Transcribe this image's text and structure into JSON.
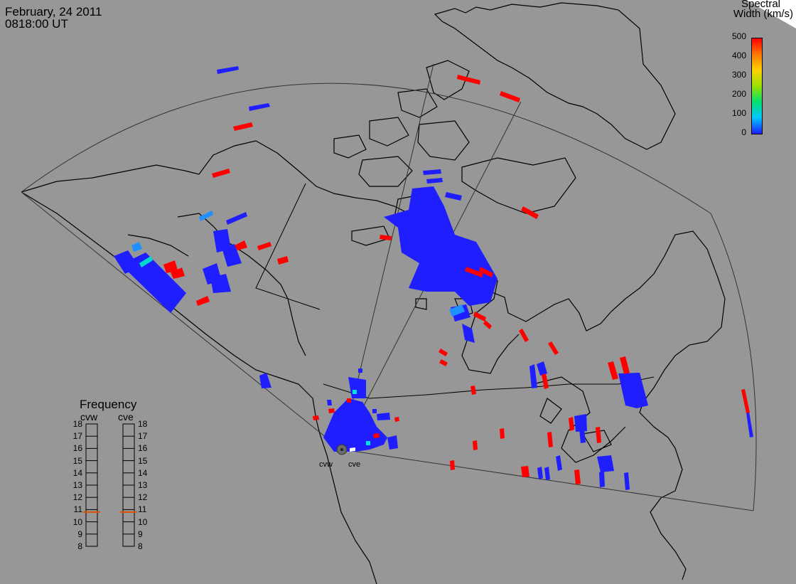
{
  "header": {
    "date": "February, 24 2011",
    "time": "0818:00 UT"
  },
  "colorbar": {
    "title_line1": "Spectral",
    "title_line2": "Width (km/s)",
    "ticks": [
      "500",
      "400",
      "300",
      "200",
      "100",
      "0"
    ],
    "colors": [
      "#1e1eff",
      "#00c8ff",
      "#00e070",
      "#9be000",
      "#ffd200",
      "#ff7800",
      "#ff0000"
    ]
  },
  "frequency": {
    "title": "Frequency",
    "radars": [
      "cvw",
      "cve"
    ],
    "ticks": [
      "18",
      "17",
      "16",
      "15",
      "14",
      "13",
      "12",
      "11",
      "10",
      "9",
      "8"
    ],
    "cvw_mhz": 10.8,
    "cve_mhz": 10.8,
    "marker_color": "#e05000"
  },
  "radar_sites": [
    {
      "name": "cvw"
    },
    {
      "name": "cve"
    }
  ]
}
